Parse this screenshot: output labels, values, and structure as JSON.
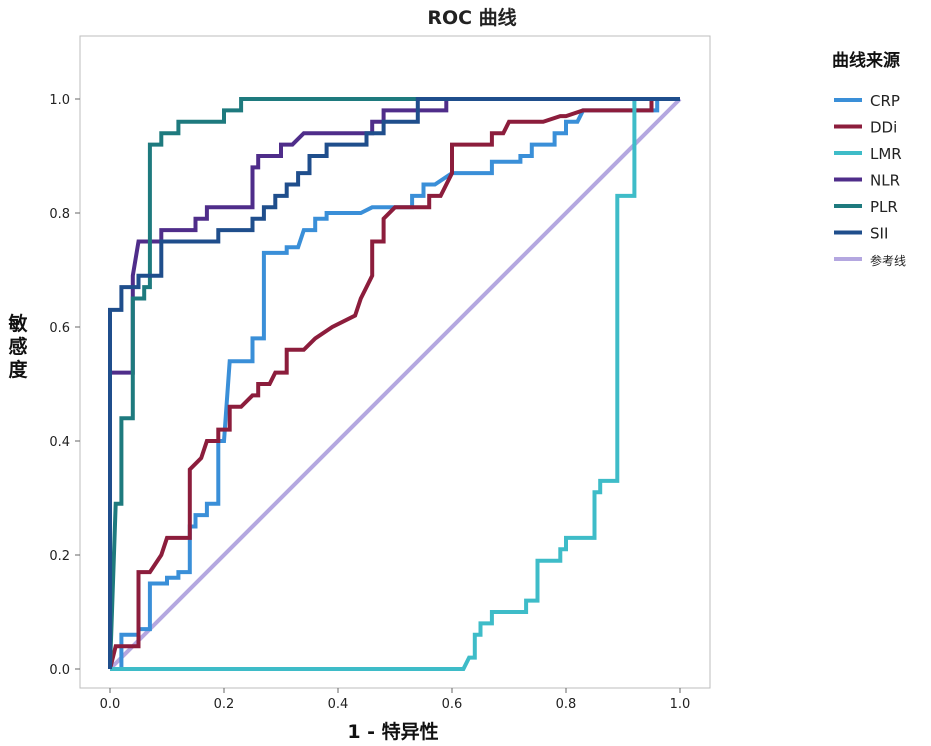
{
  "chart_data": {
    "type": "line",
    "title": "ROC 曲线",
    "xlabel": "1 - 特异性",
    "ylabel": "敏感度",
    "xlim": [
      0,
      1
    ],
    "ylim": [
      0,
      1
    ],
    "xticks": [
      "0.0",
      "0.2",
      "0.4",
      "0.6",
      "0.8",
      "1.0"
    ],
    "yticks": [
      "0.0",
      "0.2",
      "0.4",
      "0.6",
      "0.8",
      "1.0"
    ],
    "grid": true,
    "legend": {
      "title": "曲线来源",
      "placement": "right"
    },
    "series": [
      {
        "name": "CRP",
        "color": "#3A8FD8",
        "points": [
          [
            0,
            0
          ],
          [
            0.02,
            0
          ],
          [
            0.02,
            0.06
          ],
          [
            0.05,
            0.06
          ],
          [
            0.05,
            0.07
          ],
          [
            0.07,
            0.07
          ],
          [
            0.07,
            0.15
          ],
          [
            0.1,
            0.15
          ],
          [
            0.1,
            0.16
          ],
          [
            0.12,
            0.16
          ],
          [
            0.12,
            0.17
          ],
          [
            0.14,
            0.17
          ],
          [
            0.14,
            0.25
          ],
          [
            0.15,
            0.25
          ],
          [
            0.15,
            0.27
          ],
          [
            0.17,
            0.27
          ],
          [
            0.17,
            0.29
          ],
          [
            0.19,
            0.29
          ],
          [
            0.19,
            0.4
          ],
          [
            0.2,
            0.4
          ],
          [
            0.21,
            0.54
          ],
          [
            0.25,
            0.54
          ],
          [
            0.25,
            0.58
          ],
          [
            0.27,
            0.58
          ],
          [
            0.27,
            0.73
          ],
          [
            0.31,
            0.73
          ],
          [
            0.31,
            0.74
          ],
          [
            0.33,
            0.74
          ],
          [
            0.34,
            0.77
          ],
          [
            0.36,
            0.77
          ],
          [
            0.36,
            0.79
          ],
          [
            0.38,
            0.79
          ],
          [
            0.38,
            0.8
          ],
          [
            0.44,
            0.8
          ],
          [
            0.46,
            0.81
          ],
          [
            0.53,
            0.81
          ],
          [
            0.53,
            0.83
          ],
          [
            0.55,
            0.83
          ],
          [
            0.55,
            0.85
          ],
          [
            0.57,
            0.85
          ],
          [
            0.6,
            0.87
          ],
          [
            0.67,
            0.87
          ],
          [
            0.67,
            0.89
          ],
          [
            0.72,
            0.89
          ],
          [
            0.72,
            0.9
          ],
          [
            0.74,
            0.9
          ],
          [
            0.74,
            0.92
          ],
          [
            0.78,
            0.92
          ],
          [
            0.78,
            0.94
          ],
          [
            0.8,
            0.94
          ],
          [
            0.8,
            0.96
          ],
          [
            0.82,
            0.96
          ],
          [
            0.83,
            0.98
          ],
          [
            0.96,
            0.98
          ],
          [
            0.96,
            1.0
          ],
          [
            1.0,
            1.0
          ]
        ]
      },
      {
        "name": "DDi",
        "color": "#8C1D3C",
        "points": [
          [
            0,
            0
          ],
          [
            0.01,
            0.04
          ],
          [
            0.05,
            0.04
          ],
          [
            0.05,
            0.17
          ],
          [
            0.07,
            0.17
          ],
          [
            0.09,
            0.2
          ],
          [
            0.1,
            0.23
          ],
          [
            0.14,
            0.23
          ],
          [
            0.14,
            0.35
          ],
          [
            0.16,
            0.37
          ],
          [
            0.17,
            0.4
          ],
          [
            0.19,
            0.4
          ],
          [
            0.19,
            0.42
          ],
          [
            0.21,
            0.42
          ],
          [
            0.21,
            0.46
          ],
          [
            0.23,
            0.46
          ],
          [
            0.25,
            0.48
          ],
          [
            0.26,
            0.48
          ],
          [
            0.26,
            0.5
          ],
          [
            0.28,
            0.5
          ],
          [
            0.29,
            0.52
          ],
          [
            0.31,
            0.52
          ],
          [
            0.31,
            0.56
          ],
          [
            0.34,
            0.56
          ],
          [
            0.36,
            0.58
          ],
          [
            0.39,
            0.6
          ],
          [
            0.43,
            0.62
          ],
          [
            0.44,
            0.65
          ],
          [
            0.45,
            0.67
          ],
          [
            0.46,
            0.69
          ],
          [
            0.46,
            0.75
          ],
          [
            0.48,
            0.75
          ],
          [
            0.48,
            0.79
          ],
          [
            0.5,
            0.81
          ],
          [
            0.56,
            0.81
          ],
          [
            0.56,
            0.83
          ],
          [
            0.58,
            0.83
          ],
          [
            0.6,
            0.87
          ],
          [
            0.6,
            0.92
          ],
          [
            0.67,
            0.92
          ],
          [
            0.67,
            0.94
          ],
          [
            0.69,
            0.94
          ],
          [
            0.7,
            0.96
          ],
          [
            0.76,
            0.96
          ],
          [
            0.79,
            0.97
          ],
          [
            0.8,
            0.97
          ],
          [
            0.83,
            0.98
          ],
          [
            0.95,
            0.98
          ],
          [
            0.95,
            1.0
          ],
          [
            1.0,
            1.0
          ]
        ]
      },
      {
        "name": "LMR",
        "color": "#3EBCC8",
        "points": [
          [
            0,
            0
          ],
          [
            0.62,
            0
          ],
          [
            0.63,
            0.02
          ],
          [
            0.64,
            0.02
          ],
          [
            0.64,
            0.06
          ],
          [
            0.65,
            0.06
          ],
          [
            0.65,
            0.08
          ],
          [
            0.67,
            0.08
          ],
          [
            0.67,
            0.1
          ],
          [
            0.73,
            0.1
          ],
          [
            0.73,
            0.12
          ],
          [
            0.75,
            0.12
          ],
          [
            0.75,
            0.19
          ],
          [
            0.79,
            0.19
          ],
          [
            0.79,
            0.21
          ],
          [
            0.8,
            0.21
          ],
          [
            0.8,
            0.23
          ],
          [
            0.85,
            0.23
          ],
          [
            0.85,
            0.31
          ],
          [
            0.86,
            0.31
          ],
          [
            0.86,
            0.33
          ],
          [
            0.89,
            0.33
          ],
          [
            0.89,
            0.83
          ],
          [
            0.92,
            0.83
          ],
          [
            0.92,
            1.0
          ],
          [
            1.0,
            1.0
          ]
        ]
      },
      {
        "name": "NLR",
        "color": "#4F2D8A",
        "points": [
          [
            0,
            0
          ],
          [
            0,
            0.52
          ],
          [
            0.04,
            0.52
          ],
          [
            0.04,
            0.69
          ],
          [
            0.05,
            0.75
          ],
          [
            0.09,
            0.75
          ],
          [
            0.09,
            0.77
          ],
          [
            0.15,
            0.77
          ],
          [
            0.15,
            0.79
          ],
          [
            0.17,
            0.79
          ],
          [
            0.17,
            0.81
          ],
          [
            0.25,
            0.81
          ],
          [
            0.25,
            0.88
          ],
          [
            0.26,
            0.88
          ],
          [
            0.26,
            0.9
          ],
          [
            0.3,
            0.9
          ],
          [
            0.3,
            0.92
          ],
          [
            0.32,
            0.92
          ],
          [
            0.34,
            0.94
          ],
          [
            0.46,
            0.94
          ],
          [
            0.46,
            0.96
          ],
          [
            0.48,
            0.96
          ],
          [
            0.48,
            0.98
          ],
          [
            0.59,
            0.98
          ],
          [
            0.59,
            1.0
          ],
          [
            1.0,
            1.0
          ]
        ]
      },
      {
        "name": "PLR",
        "color": "#1E7A7E",
        "points": [
          [
            0,
            0
          ],
          [
            0.01,
            0.29
          ],
          [
            0.02,
            0.29
          ],
          [
            0.02,
            0.44
          ],
          [
            0.04,
            0.44
          ],
          [
            0.04,
            0.65
          ],
          [
            0.06,
            0.65
          ],
          [
            0.06,
            0.67
          ],
          [
            0.07,
            0.67
          ],
          [
            0.07,
            0.92
          ],
          [
            0.09,
            0.92
          ],
          [
            0.09,
            0.94
          ],
          [
            0.12,
            0.94
          ],
          [
            0.12,
            0.96
          ],
          [
            0.2,
            0.96
          ],
          [
            0.2,
            0.98
          ],
          [
            0.23,
            0.98
          ],
          [
            0.23,
            1.0
          ],
          [
            1.0,
            1.0
          ]
        ]
      },
      {
        "name": "SII",
        "color": "#1F4E8C",
        "points": [
          [
            0,
            0
          ],
          [
            0,
            0.63
          ],
          [
            0.02,
            0.63
          ],
          [
            0.02,
            0.67
          ],
          [
            0.05,
            0.67
          ],
          [
            0.05,
            0.69
          ],
          [
            0.09,
            0.69
          ],
          [
            0.09,
            0.75
          ],
          [
            0.19,
            0.75
          ],
          [
            0.19,
            0.77
          ],
          [
            0.25,
            0.77
          ],
          [
            0.25,
            0.79
          ],
          [
            0.27,
            0.79
          ],
          [
            0.27,
            0.81
          ],
          [
            0.29,
            0.81
          ],
          [
            0.29,
            0.83
          ],
          [
            0.31,
            0.83
          ],
          [
            0.31,
            0.85
          ],
          [
            0.33,
            0.85
          ],
          [
            0.33,
            0.87
          ],
          [
            0.35,
            0.87
          ],
          [
            0.35,
            0.9
          ],
          [
            0.38,
            0.9
          ],
          [
            0.38,
            0.92
          ],
          [
            0.45,
            0.92
          ],
          [
            0.45,
            0.94
          ],
          [
            0.48,
            0.94
          ],
          [
            0.48,
            0.96
          ],
          [
            0.54,
            0.96
          ],
          [
            0.54,
            1.0
          ],
          [
            1.0,
            1.0
          ]
        ]
      },
      {
        "name": "参考线",
        "color": "#B4A7E0",
        "points": [
          [
            0,
            0
          ],
          [
            1,
            1
          ]
        ]
      }
    ]
  }
}
